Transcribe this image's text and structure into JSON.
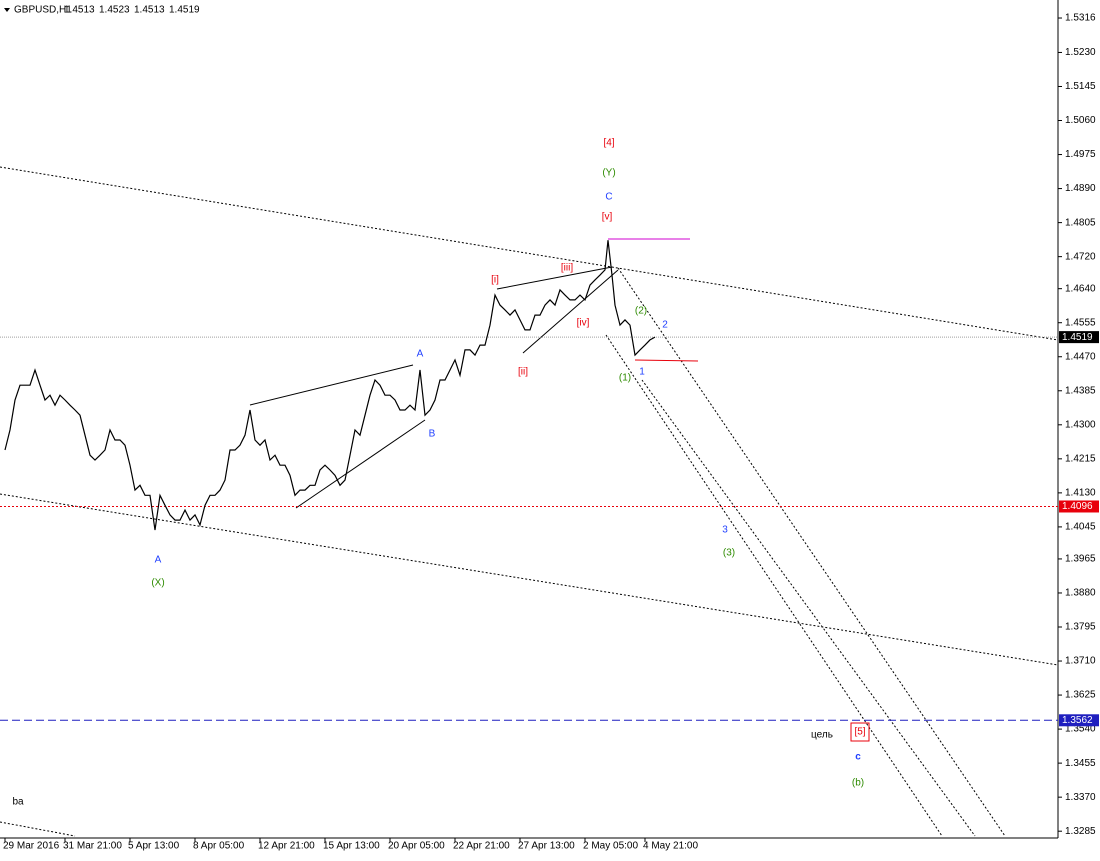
{
  "header": {
    "symbol": "GBPUSD,H1",
    "ohlc": [
      1.4513,
      1.4523,
      1.4513,
      1.4519
    ]
  },
  "chart_data": {
    "type": "line",
    "color": "#000000",
    "x": [
      5,
      10,
      15,
      20,
      30,
      35,
      40,
      45,
      50,
      55,
      60,
      65,
      70,
      75,
      80,
      85,
      90,
      95,
      100,
      105,
      110,
      115,
      120,
      125,
      130,
      135,
      140,
      145,
      150,
      155,
      160,
      165,
      170,
      175,
      180,
      185,
      190,
      195,
      200,
      205,
      210,
      215,
      220,
      225,
      230,
      235,
      240,
      245,
      250,
      255,
      260,
      265,
      270,
      275,
      280,
      285,
      290,
      295,
      300,
      305,
      310,
      315,
      320,
      325,
      330,
      335,
      340,
      345,
      350,
      355,
      360,
      365,
      370,
      375,
      380,
      385,
      390,
      395,
      400,
      405,
      410,
      415,
      420,
      425,
      430,
      435,
      440,
      445,
      450,
      455,
      460,
      465,
      470,
      475,
      480,
      485,
      490,
      495,
      500,
      505,
      510,
      515,
      520,
      525,
      530,
      535,
      540,
      545,
      550,
      555,
      560,
      565,
      570,
      575,
      580,
      585,
      590,
      595,
      600,
      605,
      608,
      612,
      615,
      620,
      625,
      630,
      635,
      640,
      645,
      650,
      655
    ],
    "values": [
      1.4237,
      1.4287,
      1.4362,
      1.4399,
      1.4399,
      1.4437,
      1.4399,
      1.4362,
      1.4374,
      1.4349,
      1.4374,
      1.4362,
      1.4349,
      1.4337,
      1.4324,
      1.4274,
      1.4224,
      1.4212,
      1.4224,
      1.4237,
      1.4287,
      1.4262,
      1.4262,
      1.4249,
      1.4199,
      1.4137,
      1.4149,
      1.4124,
      1.4124,
      1.4037,
      1.4124,
      1.4099,
      1.4075,
      1.4062,
      1.4062,
      1.4087,
      1.4062,
      1.4075,
      1.405,
      1.4099,
      1.4124,
      1.4124,
      1.4137,
      1.4162,
      1.4237,
      1.4237,
      1.4249,
      1.4274,
      1.4337,
      1.4262,
      1.4249,
      1.4262,
      1.4212,
      1.4224,
      1.4199,
      1.4199,
      1.4174,
      1.4124,
      1.4137,
      1.4137,
      1.4149,
      1.4149,
      1.4187,
      1.4199,
      1.4187,
      1.4174,
      1.4149,
      1.4162,
      1.4224,
      1.4287,
      1.4274,
      1.4324,
      1.4374,
      1.4412,
      1.4399,
      1.4374,
      1.4374,
      1.4362,
      1.4337,
      1.4337,
      1.4349,
      1.4337,
      1.4437,
      1.4324,
      1.4337,
      1.4362,
      1.4412,
      1.4412,
      1.4437,
      1.4462,
      1.4424,
      1.4487,
      1.4487,
      1.4474,
      1.4499,
      1.4499,
      1.4549,
      1.4624,
      1.4599,
      1.4587,
      1.4574,
      1.4587,
      1.4562,
      1.4537,
      1.4537,
      1.4574,
      1.4574,
      1.4599,
      1.4612,
      1.4599,
      1.4637,
      1.4624,
      1.4612,
      1.4612,
      1.4624,
      1.4612,
      1.4649,
      1.4662,
      1.4674,
      1.4687,
      1.4761,
      1.4674,
      1.4599,
      1.4549,
      1.4562,
      1.4549,
      1.4474,
      1.4487,
      1.4499,
      1.4512,
      1.4519
    ],
    "xlim": [
      0,
      1058
    ],
    "xticks": [
      {
        "value": 5,
        "label": "29 Mar 2016"
      },
      {
        "value": 65,
        "label": "31 Mar 21:00"
      },
      {
        "value": 130,
        "label": "5 Apr 13:00"
      },
      {
        "value": 195,
        "label": "8 Apr 05:00"
      },
      {
        "value": 260,
        "label": "12 Apr 21:00"
      },
      {
        "value": 325,
        "label": "15 Apr 13:00"
      },
      {
        "value": 390,
        "label": "20 Apr 05:00"
      },
      {
        "value": 455,
        "label": "22 Apr 21:00"
      },
      {
        "value": 520,
        "label": "27 Apr 13:00"
      },
      {
        "value": 585,
        "label": "2 May 05:00"
      },
      {
        "value": 645,
        "label": "4 May 21:00"
      }
    ],
    "ylim": [
      1.3268,
      1.5361
    ],
    "yticks": [
      1.5316,
      {
        "value": 1.523,
        "label": "1.5230"
      },
      1.5145,
      {
        "value": 1.506,
        "label": "1.5060"
      },
      1.4975,
      {
        "value": 1.489,
        "label": "1.4890"
      },
      1.4805,
      {
        "value": 1.472,
        "label": "1.4720"
      },
      {
        "value": 1.464,
        "label": "1.4640"
      },
      1.4555,
      {
        "value": 1.447,
        "label": "1.4470"
      },
      1.4385,
      {
        "value": 1.43,
        "label": "1.4300"
      },
      1.4215,
      {
        "value": 1.413,
        "label": "1.4130"
      },
      1.4045,
      1.3965,
      {
        "value": 1.388,
        "label": "1.3880"
      },
      1.3795,
      {
        "value": 1.371,
        "label": "1.3710"
      },
      1.3625,
      {
        "value": 1.354,
        "label": "1.3540"
      },
      1.3455,
      {
        "value": 1.337,
        "label": "1.3370"
      },
      1.3285
    ],
    "levels": [
      {
        "value": 1.4519,
        "color": "#000000"
      },
      {
        "value": 1.4096,
        "color": "#e8000b"
      },
      {
        "value": 1.3562,
        "color": "#1f1fbf"
      }
    ],
    "annotations": [
      {
        "text": "[4]",
        "color": "#e8000b"
      },
      {
        "text": "(Y)",
        "color": "#2e8b00"
      },
      {
        "text": "C",
        "color": "#1f3fff"
      },
      {
        "text": "[v]",
        "color": "#e8000b"
      },
      {
        "text": "[i]",
        "color": "#e8000b"
      },
      {
        "text": "[iii]",
        "color": "#e8000b"
      },
      {
        "text": "[iv]",
        "color": "#e8000b"
      },
      {
        "text": "[ii]",
        "color": "#e8000b"
      },
      {
        "text": "(2)",
        "color": "#2e8b00"
      },
      {
        "text": "2",
        "color": "#1f3fff"
      },
      {
        "text": "(1)",
        "color": "#2e8b00"
      },
      {
        "text": "1",
        "color": "#1f3fff"
      },
      {
        "text": "A",
        "color": "#1f3fff"
      },
      {
        "text": "B",
        "color": "#1f3fff"
      },
      {
        "text": "A",
        "color": "#1f3fff"
      },
      {
        "text": "(X)",
        "color": "#2e8b00"
      },
      {
        "text": "3",
        "color": "#1f3fff"
      },
      {
        "text": "(3)",
        "color": "#2e8b00"
      },
      {
        "text": "[5]",
        "color": "#e8000b",
        "boxed": true
      },
      {
        "text": "c",
        "color": "#1f3fff",
        "bold": true
      },
      {
        "text": "(b)",
        "color": "#2e8b00"
      },
      {
        "text": "цель",
        "color": "#000000"
      },
      {
        "text": "ba",
        "color": "#000000"
      }
    ]
  }
}
